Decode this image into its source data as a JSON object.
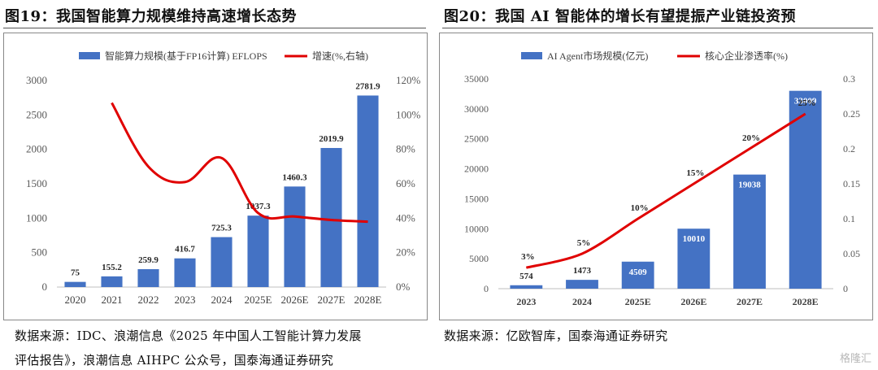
{
  "left": {
    "title": "图19：我国智能算力规模维持高速增长态势",
    "source_line1": "数据来源：IDC、浪潮信息《2025 年中国人工智能计算力发展",
    "source_line2": "评估报告》，浪潮信息 AIHPC 公众号，国泰海通证券研究"
  },
  "right": {
    "title": "图20：我国  AI  智能体的增长有望提振产业链投资预",
    "source_line1": "数据来源：亿欧智库，国泰海通证券研究"
  },
  "watermark": "格隆汇",
  "chart_data": [
    {
      "type": "bar",
      "categories": [
        "2020",
        "2021",
        "2022",
        "2023",
        "2024",
        "2025E",
        "2026E",
        "2027E",
        "2028E"
      ],
      "series": [
        {
          "name": "智能算力规模(基于FP16计算) EFLOPS",
          "type": "bar",
          "axis": "left",
          "values": [
            75,
            155.2,
            259.9,
            416.7,
            725.3,
            1037.3,
            1460.3,
            2019.9,
            2781.9
          ],
          "labels": [
            "75",
            "155.2",
            "259.9",
            "416.7",
            "725.3",
            "1037.3",
            "1460.3",
            "2019.9",
            "2781.9"
          ]
        },
        {
          "name": "增速(%,右轴)",
          "type": "line",
          "axis": "right",
          "values": [
            null,
            107,
            70,
            61,
            75,
            43,
            41,
            39,
            38
          ]
        }
      ],
      "ylim": [
        0,
        3000
      ],
      "yticks": [
        "0",
        "500",
        "1000",
        "1500",
        "2000",
        "2500",
        "3000"
      ],
      "y2lim": [
        0,
        120
      ],
      "y2ticks": [
        "0%",
        "20%",
        "40%",
        "60%",
        "80%",
        "100%",
        "120%"
      ],
      "colors": {
        "bar": "#4472C4",
        "line": "#E00000"
      },
      "legend": "top",
      "grid": false
    },
    {
      "type": "bar",
      "categories": [
        "2023",
        "2024",
        "2025E",
        "2026E",
        "2027E",
        "2028E"
      ],
      "series": [
        {
          "name": "AI Agent市场规模(亿元)",
          "type": "bar",
          "axis": "left",
          "values": [
            574,
            1473,
            4509,
            10010,
            19038,
            33009
          ],
          "labels": [
            "574",
            "1473",
            "4509",
            "10010",
            "19038",
            "33009"
          ]
        },
        {
          "name": "核心企业渗透率(%)",
          "type": "line",
          "axis": "right",
          "values": [
            0.03,
            0.05,
            0.1,
            0.15,
            0.2,
            0.25
          ],
          "labels": [
            "3%",
            "5%",
            "10%",
            "15%",
            "20%",
            "25%"
          ]
        }
      ],
      "ylim": [
        0,
        35000
      ],
      "yticks": [
        "0",
        "5000",
        "10000",
        "15000",
        "20000",
        "25000",
        "30000",
        "35000"
      ],
      "y2lim": [
        0,
        0.3
      ],
      "y2ticks": [
        "0",
        "0.05",
        "0.1",
        "0.15",
        "0.2",
        "0.25",
        "0.3"
      ],
      "colors": {
        "bar": "#4472C4",
        "line": "#E00000"
      },
      "legend": "top",
      "grid": false
    }
  ]
}
